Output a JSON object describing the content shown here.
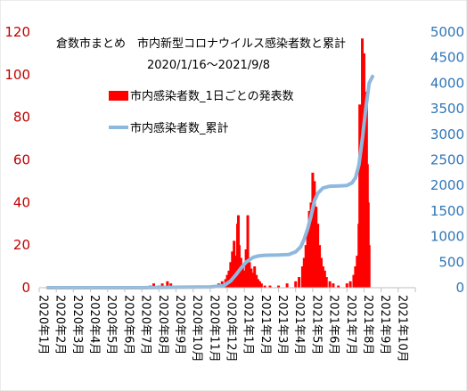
{
  "chart_data": {
    "type": "bar+line",
    "title": "倉数市まとめ　市内新型コロナウイルス感染者数と累計",
    "subtitle": "2020/1/16～2021/9/8",
    "y_left": {
      "ticks": [
        "0",
        "20",
        "40",
        "60",
        "80",
        "100",
        "120"
      ],
      "min": 0,
      "max": 120,
      "color": "#c00000"
    },
    "y_right": {
      "ticks": [
        "0",
        "500",
        "1000",
        "1500",
        "2000",
        "2500",
        "3000",
        "3500",
        "4000",
        "4500",
        "5000"
      ],
      "min": 0,
      "max": 5000,
      "color": "#2e75b6"
    },
    "x_ticks": [
      "2020年1月",
      "2020年2月",
      "2020年3月",
      "2020年4月",
      "2020年5月",
      "2020年6月",
      "2020年7月",
      "2020年8月",
      "2020年9月",
      "2020年10月",
      "2020年11月",
      "2020年12月",
      "2021年1月",
      "2021年2月",
      "2021年3月",
      "2021年4月",
      "2021年5月",
      "2021年6月",
      "2021年7月",
      "2021年8月",
      "2021年9月",
      "2021年10月"
    ],
    "legend_position": "top-left",
    "series": [
      {
        "name": "市内感染者数_1日ごとの発表数",
        "type": "bar",
        "axis": "left",
        "color": "#ff0000",
        "points": [
          [
            6.5,
            1
          ],
          [
            6.7,
            2
          ],
          [
            7.0,
            1
          ],
          [
            7.2,
            2
          ],
          [
            7.5,
            3
          ],
          [
            7.7,
            2
          ],
          [
            8.0,
            1
          ],
          [
            8.5,
            1
          ],
          [
            9.5,
            1
          ],
          [
            9.8,
            1
          ],
          [
            10.2,
            1
          ],
          [
            10.5,
            2
          ],
          [
            10.7,
            3
          ],
          [
            10.9,
            4
          ],
          [
            11.0,
            6
          ],
          [
            11.1,
            8
          ],
          [
            11.2,
            12
          ],
          [
            11.3,
            17
          ],
          [
            11.4,
            22
          ],
          [
            11.5,
            15
          ],
          [
            11.6,
            30
          ],
          [
            11.65,
            34
          ],
          [
            11.7,
            20
          ],
          [
            11.8,
            14
          ],
          [
            11.9,
            10
          ],
          [
            12.0,
            8
          ],
          [
            12.1,
            18
          ],
          [
            12.2,
            34
          ],
          [
            12.3,
            12
          ],
          [
            12.4,
            9
          ],
          [
            12.5,
            7
          ],
          [
            12.6,
            10
          ],
          [
            12.7,
            6
          ],
          [
            12.8,
            4
          ],
          [
            12.9,
            3
          ],
          [
            13.0,
            2
          ],
          [
            13.2,
            1
          ],
          [
            13.5,
            1
          ],
          [
            14.0,
            1
          ],
          [
            14.5,
            2
          ],
          [
            15.0,
            3
          ],
          [
            15.2,
            5
          ],
          [
            15.4,
            10
          ],
          [
            15.5,
            14
          ],
          [
            15.6,
            20
          ],
          [
            15.7,
            28
          ],
          [
            15.8,
            36
          ],
          [
            15.85,
            31
          ],
          [
            15.9,
            40
          ],
          [
            15.95,
            22
          ],
          [
            16.0,
            54
          ],
          [
            16.05,
            45
          ],
          [
            16.1,
            50
          ],
          [
            16.2,
            38
          ],
          [
            16.3,
            30
          ],
          [
            16.4,
            20
          ],
          [
            16.5,
            14
          ],
          [
            16.6,
            10
          ],
          [
            16.7,
            8
          ],
          [
            16.8,
            5
          ],
          [
            17.0,
            3
          ],
          [
            17.2,
            2
          ],
          [
            17.5,
            1
          ],
          [
            18.0,
            2
          ],
          [
            18.2,
            3
          ],
          [
            18.4,
            6
          ],
          [
            18.5,
            10
          ],
          [
            18.6,
            15
          ],
          [
            18.7,
            30
          ],
          [
            18.75,
            86
          ],
          [
            18.8,
            52
          ],
          [
            18.85,
            64
          ],
          [
            18.9,
            117
          ],
          [
            18.95,
            78
          ],
          [
            19.0,
            110
          ],
          [
            19.05,
            85
          ],
          [
            19.1,
            70
          ],
          [
            19.15,
            92
          ],
          [
            19.2,
            58
          ],
          [
            19.25,
            40
          ],
          [
            19.3,
            20
          ]
        ]
      },
      {
        "name": "市内感染者数_累計",
        "type": "line",
        "axis": "right",
        "color": "#8fb8de",
        "points": [
          [
            0.5,
            0
          ],
          [
            6.0,
            0
          ],
          [
            8.0,
            8
          ],
          [
            10.0,
            15
          ],
          [
            10.8,
            40
          ],
          [
            11.2,
            130
          ],
          [
            11.5,
            250
          ],
          [
            11.8,
            380
          ],
          [
            12.1,
            500
          ],
          [
            12.5,
            590
          ],
          [
            12.8,
            620
          ],
          [
            13.2,
            635
          ],
          [
            14.0,
            640
          ],
          [
            14.6,
            650
          ],
          [
            15.0,
            700
          ],
          [
            15.3,
            800
          ],
          [
            15.5,
            950
          ],
          [
            15.7,
            1150
          ],
          [
            15.9,
            1400
          ],
          [
            16.1,
            1700
          ],
          [
            16.3,
            1850
          ],
          [
            16.6,
            1950
          ],
          [
            17.0,
            1985
          ],
          [
            17.5,
            1990
          ],
          [
            18.0,
            2000
          ],
          [
            18.3,
            2050
          ],
          [
            18.5,
            2150
          ],
          [
            18.7,
            2400
          ],
          [
            18.9,
            2900
          ],
          [
            19.1,
            3500
          ],
          [
            19.3,
            4000
          ],
          [
            19.5,
            4130
          ]
        ]
      }
    ]
  }
}
